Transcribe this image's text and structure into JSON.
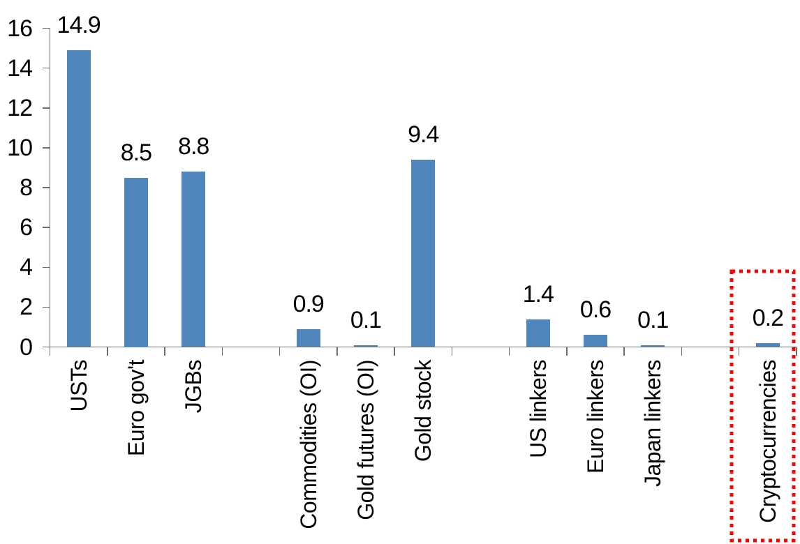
{
  "chart_data": {
    "type": "bar",
    "title": "",
    "xlabel": "",
    "ylabel": "",
    "categories": [
      "USTs",
      "Euro gov't",
      "JGBs",
      "",
      "Commodities (OI)",
      "Gold futures (OI)",
      "Gold stock",
      "",
      "US linkers",
      "Euro linkers",
      "Japan linkers",
      "",
      "Cryptocurrencies"
    ],
    "values": [
      14.9,
      8.5,
      8.8,
      null,
      0.9,
      0.1,
      9.4,
      null,
      1.4,
      0.6,
      0.1,
      null,
      0.2
    ],
    "value_labels": [
      "14.9",
      "8.5",
      "8.8",
      null,
      "0.9",
      "0.1",
      "9.4",
      null,
      "1.4",
      "0.6",
      "0.1",
      null,
      "0.2"
    ],
    "ylim": [
      0,
      16
    ],
    "yticks": [
      0,
      2,
      4,
      6,
      8,
      10,
      12,
      14,
      16
    ],
    "grid": false,
    "legend_position": "none",
    "bar_color": "#4E86BD",
    "axis_color": "#6e6e6e",
    "text_color": "#000000",
    "highlight_box": {
      "target": "Cryptocurrencies",
      "color": "#FF0000",
      "style": "dotted"
    }
  }
}
